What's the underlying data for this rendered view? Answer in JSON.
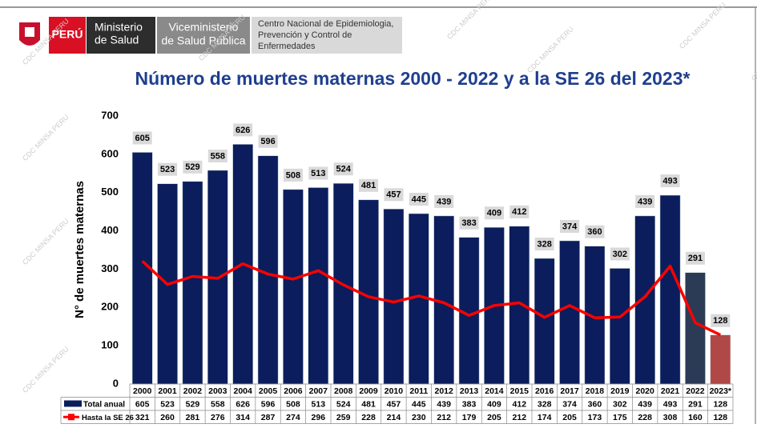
{
  "header": {
    "country": "PERÚ",
    "ministry": [
      "Ministerio",
      "de Salud"
    ],
    "vice": [
      "Viceministerio",
      "de Salud Pública"
    ],
    "center": [
      "Centro Nacional de Epidemiologia,",
      "Prevención y Control de",
      "Enfermedades"
    ],
    "watermark": "CDC MINSA PERU"
  },
  "chart_data": {
    "type": "bar_line",
    "title": "Número de muertes maternas 2000 - 2022 y a la SE 26 del 2023*",
    "y_label": "N° de muertes  maternas",
    "categories": [
      "2000",
      "2001",
      "2002",
      "2003",
      "2004",
      "2005",
      "2006",
      "2007",
      "2008",
      "2009",
      "2010",
      "2011",
      "2012",
      "2013",
      "2014",
      "2015",
      "2016",
      "2017",
      "2018",
      "2019",
      "2020",
      "2021",
      "2022",
      "2023*"
    ],
    "series": [
      {
        "name": "Total anual",
        "color": "#0b1d5c",
        "bar_colors": [
          "#0b1d5c",
          "#0b1d5c",
          "#0b1d5c",
          "#0b1d5c",
          "#0b1d5c",
          "#0b1d5c",
          "#0b1d5c",
          "#0b1d5c",
          "#0b1d5c",
          "#0b1d5c",
          "#0b1d5c",
          "#0b1d5c",
          "#0b1d5c",
          "#0b1d5c",
          "#0b1d5c",
          "#0b1d5c",
          "#0b1d5c",
          "#0b1d5c",
          "#0b1d5c",
          "#0b1d5c",
          "#0b1d5c",
          "#0b1d5c",
          "#2b3a55",
          "#b04848"
        ],
        "values": [
          605,
          523,
          529,
          558,
          626,
          596,
          508,
          513,
          524,
          481,
          457,
          445,
          439,
          383,
          409,
          412,
          328,
          374,
          360,
          302,
          439,
          493,
          291,
          128
        ]
      },
      {
        "name": "Hasta la SE 26",
        "color": "#ff0000",
        "values": [
          321,
          260,
          281,
          276,
          314,
          287,
          274,
          296,
          259,
          228,
          214,
          230,
          212,
          179,
          205,
          212,
          174,
          205,
          173,
          175,
          228,
          308,
          160,
          128
        ]
      }
    ],
    "ylim": [
      0,
      700
    ],
    "yticks": [
      0,
      100,
      200,
      300,
      400,
      500,
      600,
      700
    ]
  }
}
